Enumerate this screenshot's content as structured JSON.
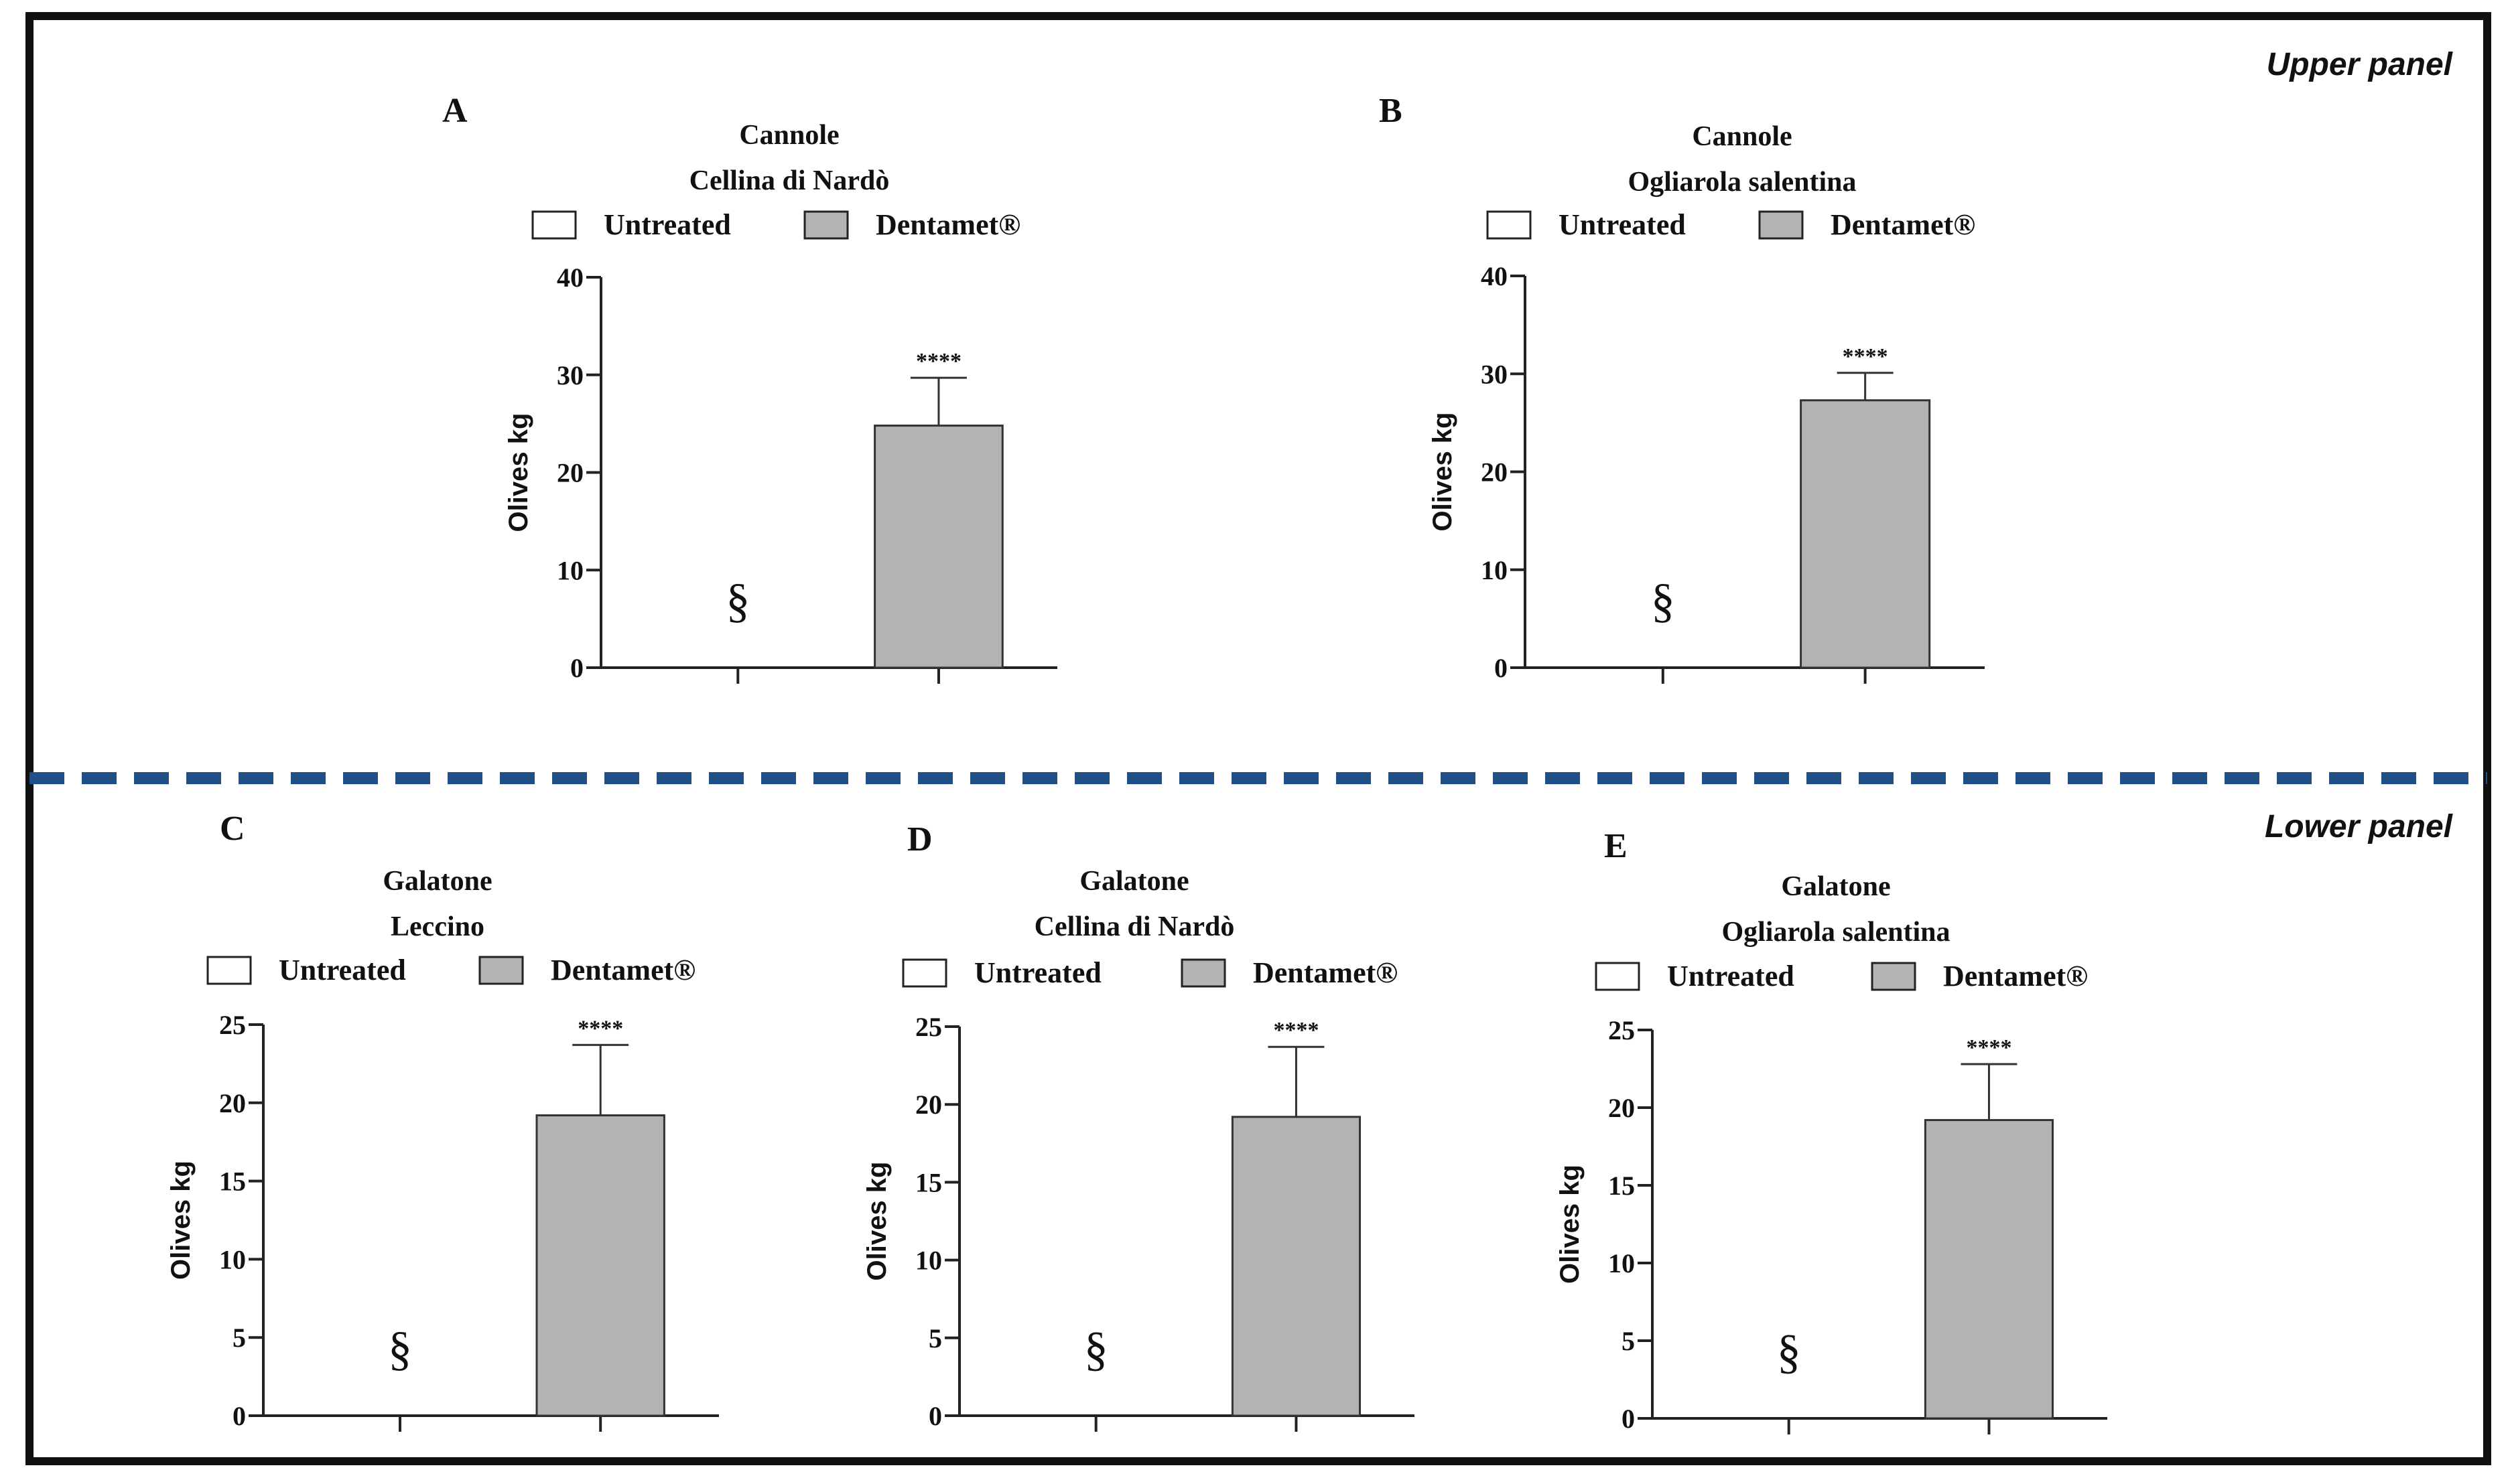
{
  "figure": {
    "upper_panel_label": "Upper panel",
    "lower_panel_label": "Lower panel",
    "colors": {
      "frame": "#111111",
      "divider_dash": "#1f4f86",
      "bar_untreated": "#ffffff",
      "bar_dentamet": "#b3b3b3"
    }
  },
  "chart_data": [
    {
      "type": "bar",
      "panel": "A",
      "title_lines": [
        "Cannole",
        "Cellina di Nardò"
      ],
      "legend": [
        "Untreated",
        "Dentamet®"
      ],
      "ylabel": "Olives kg",
      "ylim": [
        0,
        40
      ],
      "yticks": [
        0,
        10,
        20,
        30,
        40
      ],
      "categories": [
        "Untreated",
        "Dentamet®"
      ],
      "values": [
        0,
        24.8
      ],
      "errors": [
        0,
        4.9
      ],
      "significance": [
        "",
        "****"
      ],
      "annotations": [
        "§",
        ""
      ]
    },
    {
      "type": "bar",
      "panel": "B",
      "title_lines": [
        "Cannole",
        "Ogliarola salentina"
      ],
      "legend": [
        "Untreated",
        "Dentamet®"
      ],
      "ylabel": "Olives kg",
      "ylim": [
        0,
        40
      ],
      "yticks": [
        0,
        10,
        20,
        30,
        40
      ],
      "categories": [
        "Untreated",
        "Dentamet®"
      ],
      "values": [
        0,
        27.3
      ],
      "errors": [
        0,
        2.8
      ],
      "significance": [
        "",
        "****"
      ],
      "annotations": [
        "§",
        ""
      ]
    },
    {
      "type": "bar",
      "panel": "C",
      "title_lines": [
        "Galatone",
        "Leccino"
      ],
      "legend": [
        "Untreated",
        "Dentamet®"
      ],
      "ylabel": "Olives kg",
      "ylim": [
        0,
        25
      ],
      "yticks": [
        0,
        5,
        10,
        15,
        20,
        25
      ],
      "categories": [
        "Untreated",
        "Dentamet®"
      ],
      "values": [
        0,
        19.2
      ],
      "errors": [
        0,
        4.5
      ],
      "significance": [
        "",
        "****"
      ],
      "annotations": [
        "§",
        ""
      ]
    },
    {
      "type": "bar",
      "panel": "D",
      "title_lines": [
        "Galatone",
        "Cellina di Nardò"
      ],
      "legend": [
        "Untreated",
        "Dentamet®"
      ],
      "ylabel": "Olives kg",
      "ylim": [
        0,
        25
      ],
      "yticks": [
        0,
        5,
        10,
        15,
        20,
        25
      ],
      "categories": [
        "Untreated",
        "Dentamet®"
      ],
      "values": [
        0,
        19.2
      ],
      "errors": [
        0,
        4.5
      ],
      "significance": [
        "",
        "****"
      ],
      "annotations": [
        "§",
        ""
      ]
    },
    {
      "type": "bar",
      "panel": "E",
      "title_lines": [
        "Galatone",
        "Ogliarola salentina"
      ],
      "legend": [
        "Untreated",
        "Dentamet®"
      ],
      "ylabel": "Olives kg",
      "ylim": [
        0,
        25
      ],
      "yticks": [
        0,
        5,
        10,
        15,
        20,
        25
      ],
      "categories": [
        "Untreated",
        "Dentamet®"
      ],
      "values": [
        0,
        19.2
      ],
      "errors": [
        0,
        3.6
      ],
      "significance": [
        "",
        "****"
      ],
      "annotations": [
        "§",
        ""
      ]
    }
  ]
}
